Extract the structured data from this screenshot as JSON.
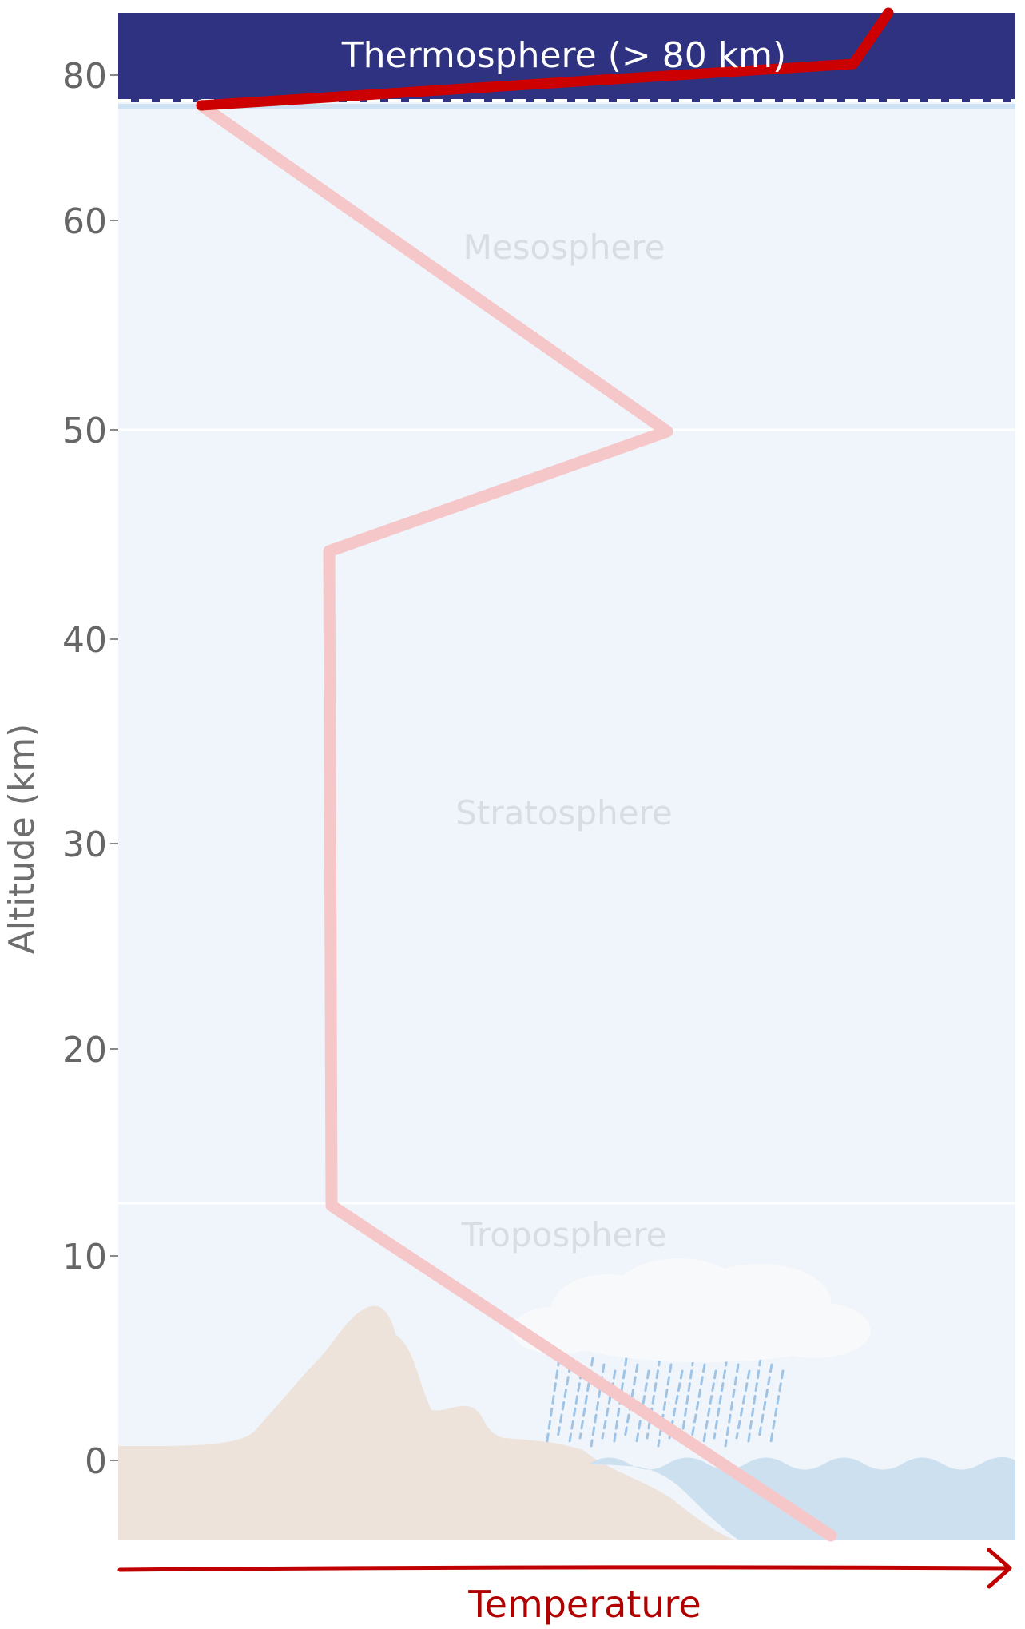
{
  "axis": {
    "y_title": "Altitude (km)",
    "x_title": "Temperature",
    "y_ticks": [
      "80",
      "60",
      "50",
      "40",
      "30",
      "20",
      "10",
      "0"
    ]
  },
  "layers": {
    "thermosphere": "Thermosphere (> 80 km)",
    "mesosphere": "Mesosphere",
    "stratosphere": "Stratosphere",
    "troposphere": "Troposphere"
  },
  "colors": {
    "sky": "#eff5fb",
    "thermosphere_band": "#2e3281",
    "profile_faded": "#f6c7c9",
    "profile_active": "#cc0000",
    "ground": "#ede3da",
    "water": "#cde0ef",
    "arrow": "#c00000"
  },
  "icons": {
    "cloud": "cloud-icon",
    "rain": "rain-icon",
    "mountain": "mountain-icon",
    "sea": "sea-wave-icon"
  }
}
